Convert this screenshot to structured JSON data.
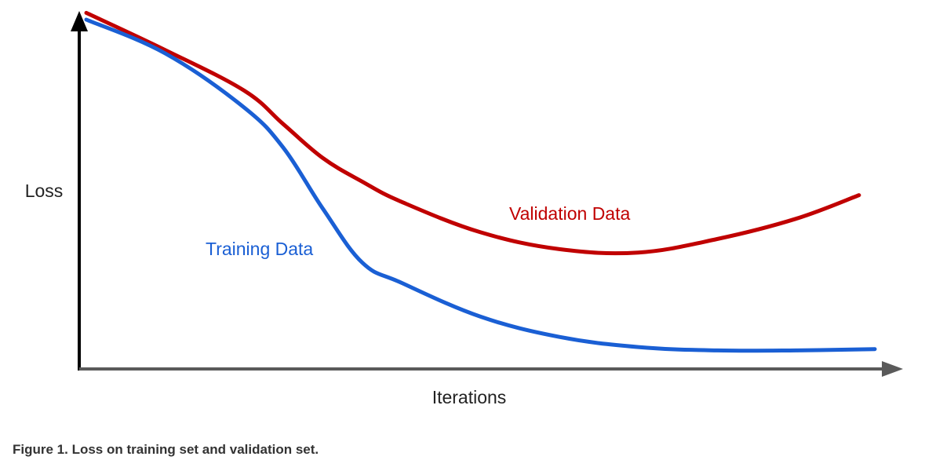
{
  "caption": "Figure 1. Loss on training set and validation set.",
  "chart_data": {
    "type": "line",
    "title": "",
    "xlabel": "Iterations",
    "ylabel": "Loss",
    "ticks": "none",
    "grid": false,
    "xlim": [
      0,
      100
    ],
    "ylim": [
      0,
      100
    ],
    "series": [
      {
        "name": "Training Data",
        "color": "#1a5fd4",
        "points": [
          [
            0,
            100
          ],
          [
            10,
            90
          ],
          [
            20,
            74
          ],
          [
            25,
            62
          ],
          [
            30,
            44
          ],
          [
            35,
            28
          ],
          [
            40,
            22
          ],
          [
            50,
            12
          ],
          [
            60,
            6
          ],
          [
            70,
            3
          ],
          [
            80,
            2
          ],
          [
            90,
            2
          ],
          [
            100,
            2.4
          ]
        ]
      },
      {
        "name": "Validation Data",
        "color": "#c00000",
        "points": [
          [
            0,
            102
          ],
          [
            10,
            91
          ],
          [
            20,
            79
          ],
          [
            25,
            69
          ],
          [
            30,
            59
          ],
          [
            35,
            52
          ],
          [
            40,
            46
          ],
          [
            50,
            37
          ],
          [
            60,
            32
          ],
          [
            70,
            31
          ],
          [
            80,
            35
          ],
          [
            90,
            41
          ],
          [
            98,
            48
          ]
        ]
      }
    ]
  }
}
